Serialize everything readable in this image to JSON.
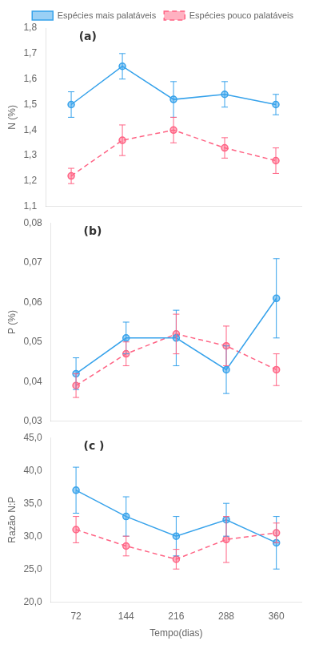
{
  "chart_data": [
    {
      "type": "line",
      "annotations": [
        "(a)"
      ],
      "ylabel": "N (%)",
      "x": [
        72,
        144,
        216,
        288,
        360
      ],
      "xlim": [
        36,
        396
      ],
      "xticks": [
        72,
        144,
        216,
        288,
        360
      ],
      "ylim": [
        1.1,
        1.8
      ],
      "yticks": [
        {
          "value": 1.1,
          "label": "1,1"
        },
        {
          "value": 1.2,
          "label": "1,2"
        },
        {
          "value": 1.3,
          "label": "1,3"
        },
        {
          "value": 1.4,
          "label": "1,4"
        },
        {
          "value": 1.5,
          "label": "1,5"
        },
        {
          "value": 1.6,
          "label": "1,6"
        },
        {
          "value": 1.7,
          "label": "1,7"
        },
        {
          "value": 1.8,
          "label": "1,8"
        }
      ],
      "series": [
        {
          "name": "Espécies mais palatáveis",
          "values": [
            1.5,
            1.65,
            1.52,
            1.54,
            1.5
          ],
          "errors": [
            0.05,
            0.05,
            0.07,
            0.05,
            0.04
          ],
          "marker": "circle",
          "line_style": "solid"
        },
        {
          "name": "Espécies pouco palatáveis",
          "values": [
            1.22,
            1.36,
            1.4,
            1.33,
            1.28
          ],
          "errors": [
            0.03,
            0.06,
            0.05,
            0.04,
            0.05
          ],
          "marker": "circle",
          "line_style": "dashed"
        }
      ],
      "legend": "upper right",
      "grid": false,
      "tick_labels": "y"
    },
    {
      "type": "line",
      "annotations": [
        "(b)"
      ],
      "ylabel": "P (%)",
      "x": [
        72,
        144,
        216,
        288,
        360
      ],
      "xlim": [
        36,
        396
      ],
      "xticks": [
        72,
        144,
        216,
        288,
        360
      ],
      "ylim": [
        0.03,
        0.08
      ],
      "yticks": [
        {
          "value": 0.03,
          "label": "0,03"
        },
        {
          "value": 0.04,
          "label": "0,04"
        },
        {
          "value": 0.05,
          "label": "0,05"
        },
        {
          "value": 0.06,
          "label": "0,06"
        },
        {
          "value": 0.07,
          "label": "0,07"
        },
        {
          "value": 0.08,
          "label": "0,08"
        }
      ],
      "series": [
        {
          "values": [
            0.042,
            0.051,
            0.051,
            0.043,
            0.061
          ],
          "errors": [
            0.004,
            0.004,
            0.007,
            0.006,
            0.01
          ],
          "marker": "circle",
          "line_style": "solid"
        },
        {
          "values": [
            0.039,
            0.047,
            0.052,
            0.049,
            0.043
          ],
          "errors": [
            0.003,
            0.003,
            0.005,
            0.005,
            0.004
          ],
          "marker": "circle",
          "line_style": "dashed"
        }
      ],
      "legend": false,
      "grid": false,
      "tick_labels": "y"
    },
    {
      "type": "line",
      "annotations": [
        "(c )"
      ],
      "ylabel": "Razão N:P",
      "xlabel": "Tempo(dias)",
      "x": [
        72,
        144,
        216,
        288,
        360
      ],
      "xlim": [
        36,
        396
      ],
      "xticks": [
        72,
        144,
        216,
        288,
        360
      ],
      "ylim": [
        20,
        45
      ],
      "yticks": [
        {
          "value": 20,
          "label": "20,0"
        },
        {
          "value": 25,
          "label": "25,0"
        },
        {
          "value": 30,
          "label": "30,0"
        },
        {
          "value": 35,
          "label": "35,0"
        },
        {
          "value": 40,
          "label": "40,0"
        },
        {
          "value": 45,
          "label": "45,0"
        }
      ],
      "series": [
        {
          "values": [
            37.0,
            33.0,
            30.0,
            32.5,
            29.0
          ],
          "errors": [
            3.5,
            3.0,
            3.0,
            2.5,
            4.0
          ],
          "marker": "circle",
          "line_style": "solid"
        },
        {
          "values": [
            31.0,
            28.5,
            26.5,
            29.5,
            30.5
          ],
          "errors": [
            2.0,
            1.5,
            1.5,
            3.5,
            1.5
          ],
          "marker": "circle",
          "line_style": "dashed"
        }
      ],
      "legend": false,
      "grid": false
    }
  ]
}
